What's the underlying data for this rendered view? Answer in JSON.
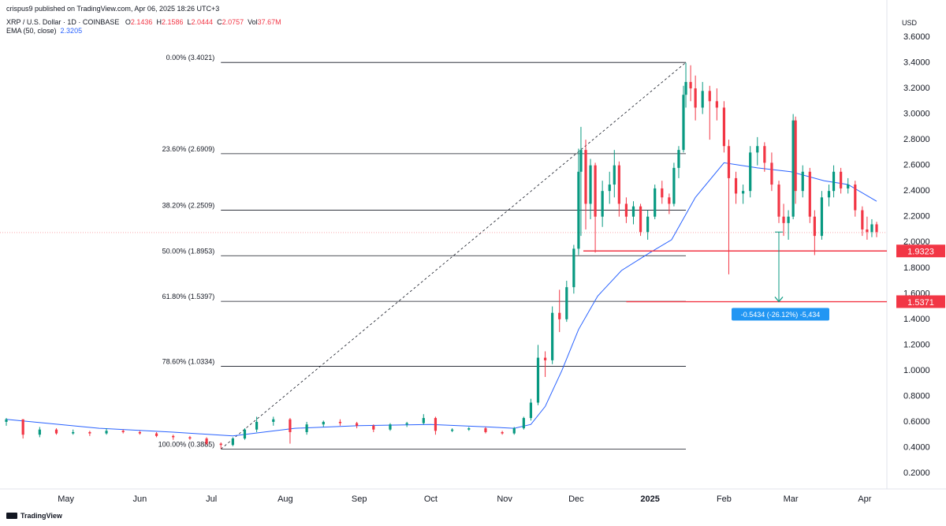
{
  "header": {
    "published": "crispus9 published on TradingView.com, Apr 06, 2025 18:26 UTC+3",
    "symbol": "XRP / U.S. Dollar · 1D · COINBASE",
    "o_label": "O",
    "o": "2.1436",
    "h_label": "H",
    "h": "2.1586",
    "l_label": "L",
    "l": "2.0444",
    "c_label": "C",
    "c": "2.0757",
    "vol_label": "Vol",
    "vol": "37.67M",
    "ema_label": "EMA (50, close)",
    "ema": "2.3205"
  },
  "axis_unit": "USD",
  "branding": "TradingView",
  "colors": {
    "up": "#089981",
    "down": "#f23645",
    "ema": "#2962ff",
    "level_line": "#f23645",
    "fib_line": "#131722",
    "measure": "#089981",
    "measure_label_bg": "#2196f3"
  },
  "chart_data": {
    "type": "candlestick",
    "title": "",
    "ylabel": "USD",
    "ylim": [
      0.2,
      3.6
    ],
    "yticks": [
      "3.6000",
      "3.4000",
      "3.2000",
      "3.0000",
      "2.8000",
      "2.6000",
      "2.4000",
      "2.2000",
      "2.0000",
      "1.8000",
      "1.6000",
      "1.4000",
      "1.2000",
      "1.0000",
      "0.8000",
      "0.6000",
      "0.4000",
      "0.2000"
    ],
    "xticks": [
      {
        "date": "2024-05-01",
        "label": "May"
      },
      {
        "date": "2024-06-01",
        "label": "Jun"
      },
      {
        "date": "2024-07-01",
        "label": "Jul"
      },
      {
        "date": "2024-08-01",
        "label": "Aug"
      },
      {
        "date": "2024-09-01",
        "label": "Sep"
      },
      {
        "date": "2024-10-01",
        "label": "Oct"
      },
      {
        "date": "2024-11-01",
        "label": "Nov"
      },
      {
        "date": "2024-12-01",
        "label": "Dec"
      },
      {
        "date": "2025-01-01",
        "label": "2025"
      },
      {
        "date": "2025-02-01",
        "label": "Feb"
      },
      {
        "date": "2025-03-01",
        "label": "Mar"
      },
      {
        "date": "2025-04-01",
        "label": "Apr"
      }
    ],
    "x_range": [
      "2024-04-06",
      "2025-04-06"
    ],
    "fibonacci": {
      "from": {
        "date": "2024-07-05",
        "price": 0.3885
      },
      "to": {
        "date": "2025-01-16",
        "price": 3.4021
      },
      "levels": [
        {
          "label": "0.00% (3.4021)",
          "price": 3.4021
        },
        {
          "label": "23.60% (2.6909)",
          "price": 2.6909
        },
        {
          "label": "38.20% (2.2509)",
          "price": 2.2509
        },
        {
          "label": "50.00% (1.8953)",
          "price": 1.8953
        },
        {
          "label": "61.80% (1.5397)",
          "price": 1.5397
        },
        {
          "label": "78.60% (1.0334)",
          "price": 1.0334
        },
        {
          "label": "100.00% (0.3885)",
          "price": 0.3885
        }
      ]
    },
    "horizontal_levels": [
      {
        "label": "1.9323",
        "price": 1.9323,
        "from_date": "2024-12-04"
      },
      {
        "label": "1.5371",
        "price": 1.5371,
        "from_date": "2024-12-22"
      }
    ],
    "measure": {
      "label": "-0.5434 (-26.12%) -5,434",
      "date": "2025-02-24",
      "from_price": 2.08,
      "to_price": 1.5371
    },
    "current_price": 2.0757,
    "candles": [
      {
        "d": "2024-04-06",
        "o": 0.6,
        "h": 0.63,
        "l": 0.57,
        "c": 0.62
      },
      {
        "d": "2024-04-13",
        "o": 0.62,
        "h": 0.62,
        "l": 0.47,
        "c": 0.5
      },
      {
        "d": "2024-04-20",
        "o": 0.5,
        "h": 0.56,
        "l": 0.48,
        "c": 0.54
      },
      {
        "d": "2024-04-27",
        "o": 0.54,
        "h": 0.55,
        "l": 0.5,
        "c": 0.51
      },
      {
        "d": "2024-05-04",
        "o": 0.51,
        "h": 0.54,
        "l": 0.5,
        "c": 0.52
      },
      {
        "d": "2024-05-11",
        "o": 0.52,
        "h": 0.53,
        "l": 0.49,
        "c": 0.51
      },
      {
        "d": "2024-05-18",
        "o": 0.51,
        "h": 0.55,
        "l": 0.5,
        "c": 0.53
      },
      {
        "d": "2024-05-25",
        "o": 0.53,
        "h": 0.54,
        "l": 0.51,
        "c": 0.52
      },
      {
        "d": "2024-06-01",
        "o": 0.52,
        "h": 0.53,
        "l": 0.5,
        "c": 0.51
      },
      {
        "d": "2024-06-08",
        "o": 0.51,
        "h": 0.52,
        "l": 0.48,
        "c": 0.49
      },
      {
        "d": "2024-06-15",
        "o": 0.49,
        "h": 0.5,
        "l": 0.46,
        "c": 0.48
      },
      {
        "d": "2024-06-22",
        "o": 0.48,
        "h": 0.49,
        "l": 0.46,
        "c": 0.47
      },
      {
        "d": "2024-06-29",
        "o": 0.47,
        "h": 0.48,
        "l": 0.42,
        "c": 0.43
      },
      {
        "d": "2024-07-05",
        "o": 0.43,
        "h": 0.44,
        "l": 0.39,
        "c": 0.42
      },
      {
        "d": "2024-07-10",
        "o": 0.42,
        "h": 0.48,
        "l": 0.41,
        "c": 0.47
      },
      {
        "d": "2024-07-15",
        "o": 0.47,
        "h": 0.55,
        "l": 0.46,
        "c": 0.54
      },
      {
        "d": "2024-07-20",
        "o": 0.54,
        "h": 0.64,
        "l": 0.52,
        "c": 0.6
      },
      {
        "d": "2024-07-27",
        "o": 0.6,
        "h": 0.64,
        "l": 0.57,
        "c": 0.62
      },
      {
        "d": "2024-08-03",
        "o": 0.62,
        "h": 0.63,
        "l": 0.43,
        "c": 0.52
      },
      {
        "d": "2024-08-10",
        "o": 0.52,
        "h": 0.6,
        "l": 0.5,
        "c": 0.58
      },
      {
        "d": "2024-08-17",
        "o": 0.58,
        "h": 0.61,
        "l": 0.56,
        "c": 0.6
      },
      {
        "d": "2024-08-24",
        "o": 0.6,
        "h": 0.62,
        "l": 0.57,
        "c": 0.59
      },
      {
        "d": "2024-08-31",
        "o": 0.59,
        "h": 0.6,
        "l": 0.55,
        "c": 0.57
      },
      {
        "d": "2024-09-07",
        "o": 0.57,
        "h": 0.58,
        "l": 0.52,
        "c": 0.54
      },
      {
        "d": "2024-09-14",
        "o": 0.54,
        "h": 0.59,
        "l": 0.53,
        "c": 0.58
      },
      {
        "d": "2024-09-21",
        "o": 0.58,
        "h": 0.6,
        "l": 0.56,
        "c": 0.59
      },
      {
        "d": "2024-09-28",
        "o": 0.59,
        "h": 0.66,
        "l": 0.58,
        "c": 0.63
      },
      {
        "d": "2024-10-03",
        "o": 0.63,
        "h": 0.64,
        "l": 0.5,
        "c": 0.53
      },
      {
        "d": "2024-10-10",
        "o": 0.53,
        "h": 0.55,
        "l": 0.52,
        "c": 0.54
      },
      {
        "d": "2024-10-17",
        "o": 0.54,
        "h": 0.56,
        "l": 0.53,
        "c": 0.55
      },
      {
        "d": "2024-10-24",
        "o": 0.55,
        "h": 0.56,
        "l": 0.51,
        "c": 0.52
      },
      {
        "d": "2024-10-31",
        "o": 0.52,
        "h": 0.53,
        "l": 0.5,
        "c": 0.51
      },
      {
        "d": "2024-11-05",
        "o": 0.51,
        "h": 0.56,
        "l": 0.5,
        "c": 0.55
      },
      {
        "d": "2024-11-09",
        "o": 0.55,
        "h": 0.64,
        "l": 0.54,
        "c": 0.63
      },
      {
        "d": "2024-11-12",
        "o": 0.63,
        "h": 0.78,
        "l": 0.61,
        "c": 0.75
      },
      {
        "d": "2024-11-15",
        "o": 0.75,
        "h": 1.2,
        "l": 0.73,
        "c": 1.1
      },
      {
        "d": "2024-11-18",
        "o": 1.1,
        "h": 1.15,
        "l": 0.95,
        "c": 1.08
      },
      {
        "d": "2024-11-21",
        "o": 1.08,
        "h": 1.5,
        "l": 1.05,
        "c": 1.45
      },
      {
        "d": "2024-11-24",
        "o": 1.45,
        "h": 1.63,
        "l": 1.3,
        "c": 1.4
      },
      {
        "d": "2024-11-27",
        "o": 1.4,
        "h": 1.7,
        "l": 1.38,
        "c": 1.65
      },
      {
        "d": "2024-11-30",
        "o": 1.65,
        "h": 1.98,
        "l": 1.6,
        "c": 1.95
      },
      {
        "d": "2024-12-02",
        "o": 1.95,
        "h": 2.73,
        "l": 1.9,
        "c": 2.55
      },
      {
        "d": "2024-12-03",
        "o": 2.55,
        "h": 2.9,
        "l": 2.05,
        "c": 2.72
      },
      {
        "d": "2024-12-05",
        "o": 2.72,
        "h": 2.8,
        "l": 2.1,
        "c": 2.3
      },
      {
        "d": "2024-12-07",
        "o": 2.3,
        "h": 2.65,
        "l": 2.18,
        "c": 2.6
      },
      {
        "d": "2024-12-09",
        "o": 2.6,
        "h": 2.62,
        "l": 1.92,
        "c": 2.2
      },
      {
        "d": "2024-12-12",
        "o": 2.2,
        "h": 2.48,
        "l": 2.12,
        "c": 2.4
      },
      {
        "d": "2024-12-15",
        "o": 2.4,
        "h": 2.55,
        "l": 2.3,
        "c": 2.45
      },
      {
        "d": "2024-12-17",
        "o": 2.45,
        "h": 2.72,
        "l": 2.35,
        "c": 2.6
      },
      {
        "d": "2024-12-19",
        "o": 2.6,
        "h": 2.63,
        "l": 2.2,
        "c": 2.3
      },
      {
        "d": "2024-12-22",
        "o": 2.3,
        "h": 2.35,
        "l": 2.15,
        "c": 2.2
      },
      {
        "d": "2024-12-25",
        "o": 2.2,
        "h": 2.32,
        "l": 2.14,
        "c": 2.28
      },
      {
        "d": "2024-12-28",
        "o": 2.28,
        "h": 2.3,
        "l": 2.05,
        "c": 2.08
      },
      {
        "d": "2024-12-31",
        "o": 2.08,
        "h": 2.25,
        "l": 2.02,
        "c": 2.2
      },
      {
        "d": "2025-01-03",
        "o": 2.2,
        "h": 2.45,
        "l": 2.18,
        "c": 2.42
      },
      {
        "d": "2025-01-06",
        "o": 2.42,
        "h": 2.48,
        "l": 2.3,
        "c": 2.35
      },
      {
        "d": "2025-01-09",
        "o": 2.35,
        "h": 2.38,
        "l": 2.22,
        "c": 2.3
      },
      {
        "d": "2025-01-11",
        "o": 2.3,
        "h": 2.62,
        "l": 2.28,
        "c": 2.58
      },
      {
        "d": "2025-01-13",
        "o": 2.58,
        "h": 2.75,
        "l": 2.5,
        "c": 2.72
      },
      {
        "d": "2025-01-15",
        "o": 2.72,
        "h": 3.22,
        "l": 2.7,
        "c": 3.15
      },
      {
        "d": "2025-01-16",
        "o": 3.15,
        "h": 3.4,
        "l": 3.05,
        "c": 3.25
      },
      {
        "d": "2025-01-18",
        "o": 3.25,
        "h": 3.38,
        "l": 3.1,
        "c": 3.2
      },
      {
        "d": "2025-01-20",
        "o": 3.2,
        "h": 3.3,
        "l": 2.95,
        "c": 3.05
      },
      {
        "d": "2025-01-23",
        "o": 3.05,
        "h": 3.25,
        "l": 3.0,
        "c": 3.18
      },
      {
        "d": "2025-01-26",
        "o": 3.18,
        "h": 3.22,
        "l": 2.8,
        "c": 3.1
      },
      {
        "d": "2025-01-29",
        "o": 3.1,
        "h": 3.2,
        "l": 2.95,
        "c": 3.05
      },
      {
        "d": "2025-02-01",
        "o": 3.05,
        "h": 3.1,
        "l": 2.7,
        "c": 2.75
      },
      {
        "d": "2025-02-03",
        "o": 2.75,
        "h": 2.8,
        "l": 1.75,
        "c": 2.5
      },
      {
        "d": "2025-02-06",
        "o": 2.5,
        "h": 2.55,
        "l": 2.3,
        "c": 2.38
      },
      {
        "d": "2025-02-09",
        "o": 2.38,
        "h": 2.45,
        "l": 2.3,
        "c": 2.4
      },
      {
        "d": "2025-02-12",
        "o": 2.4,
        "h": 2.75,
        "l": 2.35,
        "c": 2.7
      },
      {
        "d": "2025-02-15",
        "o": 2.7,
        "h": 2.82,
        "l": 2.6,
        "c": 2.75
      },
      {
        "d": "2025-02-18",
        "o": 2.75,
        "h": 2.78,
        "l": 2.55,
        "c": 2.62
      },
      {
        "d": "2025-02-21",
        "o": 2.62,
        "h": 2.7,
        "l": 2.4,
        "c": 2.45
      },
      {
        "d": "2025-02-24",
        "o": 2.45,
        "h": 2.48,
        "l": 2.15,
        "c": 2.2
      },
      {
        "d": "2025-02-26",
        "o": 2.2,
        "h": 2.3,
        "l": 2.05,
        "c": 2.15
      },
      {
        "d": "2025-02-28",
        "o": 2.15,
        "h": 2.25,
        "l": 2.02,
        "c": 2.2
      },
      {
        "d": "2025-03-02",
        "o": 2.2,
        "h": 3.0,
        "l": 2.18,
        "c": 2.95
      },
      {
        "d": "2025-03-03",
        "o": 2.95,
        "h": 2.98,
        "l": 2.3,
        "c": 2.4
      },
      {
        "d": "2025-03-06",
        "o": 2.4,
        "h": 2.6,
        "l": 2.35,
        "c": 2.55
      },
      {
        "d": "2025-03-09",
        "o": 2.55,
        "h": 2.58,
        "l": 2.15,
        "c": 2.2
      },
      {
        "d": "2025-03-11",
        "o": 2.2,
        "h": 2.25,
        "l": 1.9,
        "c": 2.05
      },
      {
        "d": "2025-03-14",
        "o": 2.05,
        "h": 2.4,
        "l": 2.02,
        "c": 2.35
      },
      {
        "d": "2025-03-17",
        "o": 2.35,
        "h": 2.45,
        "l": 2.28,
        "c": 2.4
      },
      {
        "d": "2025-03-19",
        "o": 2.4,
        "h": 2.6,
        "l": 2.35,
        "c": 2.55
      },
      {
        "d": "2025-03-22",
        "o": 2.55,
        "h": 2.58,
        "l": 2.38,
        "c": 2.42
      },
      {
        "d": "2025-03-25",
        "o": 2.42,
        "h": 2.5,
        "l": 2.38,
        "c": 2.45
      },
      {
        "d": "2025-03-28",
        "o": 2.45,
        "h": 2.48,
        "l": 2.2,
        "c": 2.25
      },
      {
        "d": "2025-03-31",
        "o": 2.25,
        "h": 2.28,
        "l": 2.05,
        "c": 2.1
      },
      {
        "d": "2025-04-02",
        "o": 2.1,
        "h": 2.2,
        "l": 2.02,
        "c": 2.08
      },
      {
        "d": "2025-04-04",
        "o": 2.08,
        "h": 2.18,
        "l": 2.04,
        "c": 2.14
      },
      {
        "d": "2025-04-06",
        "o": 2.14,
        "h": 2.16,
        "l": 2.04,
        "c": 2.08
      }
    ],
    "ema": [
      {
        "d": "2024-04-06",
        "v": 0.62
      },
      {
        "d": "2024-05-15",
        "v": 0.55
      },
      {
        "d": "2024-06-15",
        "v": 0.52
      },
      {
        "d": "2024-07-10",
        "v": 0.49
      },
      {
        "d": "2024-08-05",
        "v": 0.55
      },
      {
        "d": "2024-09-01",
        "v": 0.57
      },
      {
        "d": "2024-10-01",
        "v": 0.58
      },
      {
        "d": "2024-10-25",
        "v": 0.56
      },
      {
        "d": "2024-11-05",
        "v": 0.55
      },
      {
        "d": "2024-11-12",
        "v": 0.58
      },
      {
        "d": "2024-11-18",
        "v": 0.72
      },
      {
        "d": "2024-11-25",
        "v": 1.0
      },
      {
        "d": "2024-12-02",
        "v": 1.32
      },
      {
        "d": "2024-12-10",
        "v": 1.58
      },
      {
        "d": "2024-12-20",
        "v": 1.78
      },
      {
        "d": "2025-01-01",
        "v": 1.92
      },
      {
        "d": "2025-01-10",
        "v": 2.02
      },
      {
        "d": "2025-01-20",
        "v": 2.35
      },
      {
        "d": "2025-02-01",
        "v": 2.62
      },
      {
        "d": "2025-02-15",
        "v": 2.58
      },
      {
        "d": "2025-03-01",
        "v": 2.55
      },
      {
        "d": "2025-03-15",
        "v": 2.48
      },
      {
        "d": "2025-03-25",
        "v": 2.45
      },
      {
        "d": "2025-04-06",
        "v": 2.32
      }
    ]
  }
}
